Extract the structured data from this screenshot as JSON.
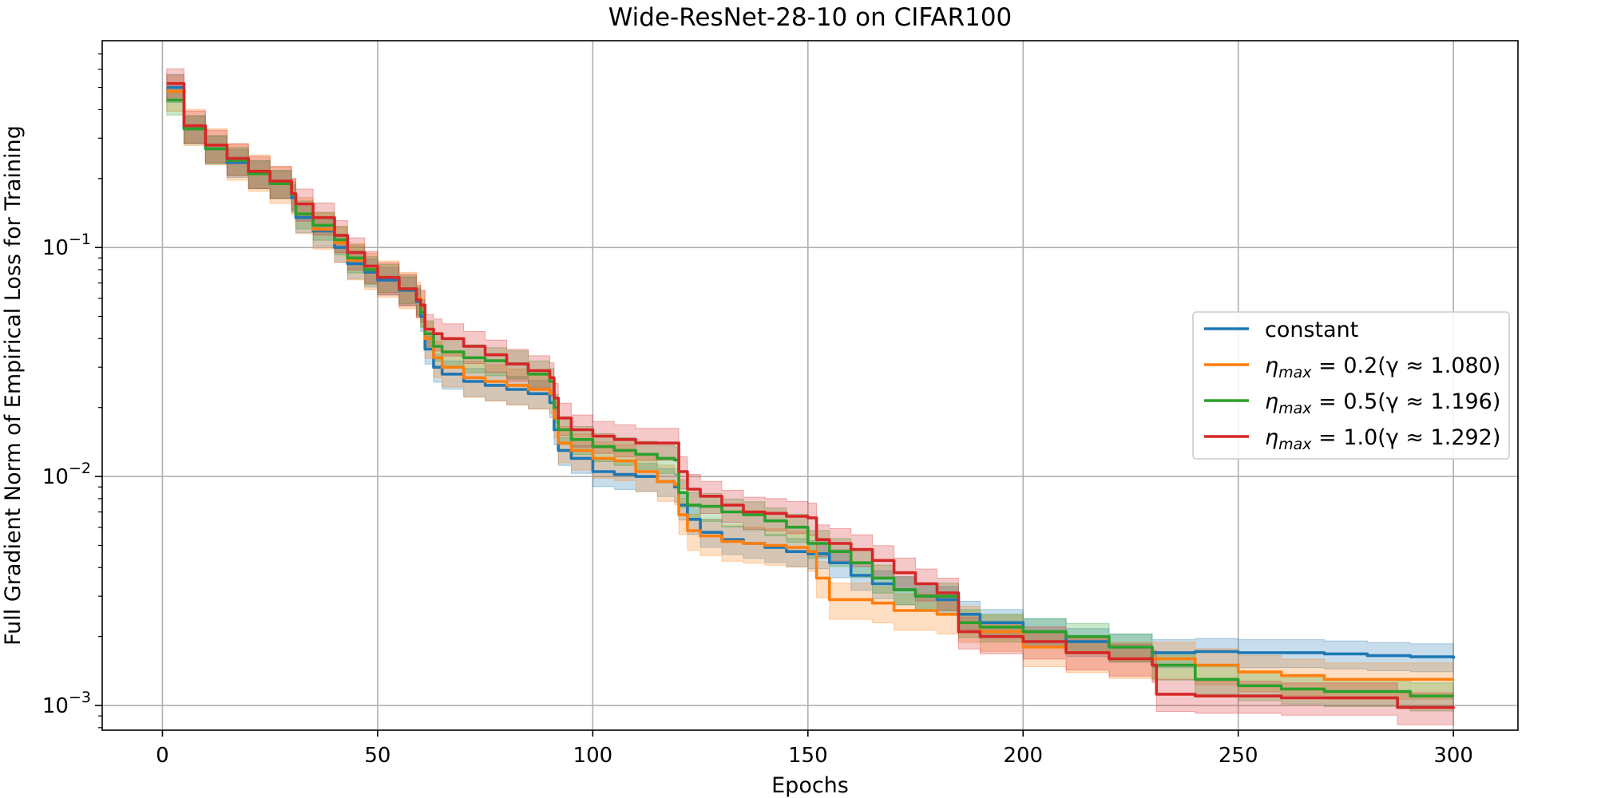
{
  "chart_data": {
    "type": "line",
    "title": "Wide-ResNet-28-10 on CIFAR100",
    "xlabel": "Epochs",
    "ylabel": "Full Gradient Norm of Empirical Loss for Training",
    "xlim": [
      -14,
      315
    ],
    "ylim": [
      0.00078,
      0.8
    ],
    "yscale": "log",
    "grid": true,
    "legend_position": "center-right",
    "x_ticks": [
      0,
      50,
      100,
      150,
      200,
      250,
      300
    ],
    "x_tick_labels": [
      "0",
      "50",
      "100",
      "150",
      "200",
      "250",
      "300"
    ],
    "y_ticks": [
      0.1,
      0.01,
      0.001
    ],
    "y_tick_labels": [
      {
        "base": "10",
        "exp": "−1"
      },
      {
        "base": "10",
        "exp": "−2"
      },
      {
        "base": "10",
        "exp": "−3"
      }
    ],
    "series": [
      {
        "name": "constant",
        "legend": {
          "plain": "constant"
        },
        "color": "#1f77b4",
        "band_pct": 0.14,
        "points": [
          [
            1,
            0.5
          ],
          [
            5,
            0.33
          ],
          [
            10,
            0.27
          ],
          [
            15,
            0.235
          ],
          [
            20,
            0.21
          ],
          [
            25,
            0.19
          ],
          [
            30,
            0.165
          ],
          [
            31,
            0.135
          ],
          [
            35,
            0.118
          ],
          [
            40,
            0.1
          ],
          [
            43,
            0.085
          ],
          [
            47,
            0.078
          ],
          [
            50,
            0.072
          ],
          [
            55,
            0.065
          ],
          [
            59,
            0.058
          ],
          [
            60,
            0.05
          ],
          [
            61,
            0.036
          ],
          [
            63,
            0.03
          ],
          [
            65,
            0.028
          ],
          [
            70,
            0.026
          ],
          [
            75,
            0.025
          ],
          [
            80,
            0.024
          ],
          [
            85,
            0.023
          ],
          [
            90,
            0.021
          ],
          [
            91,
            0.016
          ],
          [
            92,
            0.013
          ],
          [
            95,
            0.012
          ],
          [
            100,
            0.0105
          ],
          [
            105,
            0.0102
          ],
          [
            110,
            0.01
          ],
          [
            115,
            0.0095
          ],
          [
            119,
            0.009
          ],
          [
            120,
            0.0075
          ],
          [
            122,
            0.0065
          ],
          [
            125,
            0.0057
          ],
          [
            130,
            0.0053
          ],
          [
            135,
            0.0051
          ],
          [
            140,
            0.0049
          ],
          [
            145,
            0.0047
          ],
          [
            150,
            0.0046
          ],
          [
            155,
            0.0042
          ],
          [
            160,
            0.0037
          ],
          [
            165,
            0.0034
          ],
          [
            170,
            0.0032
          ],
          [
            175,
            0.003
          ],
          [
            180,
            0.0029
          ],
          [
            185,
            0.0025
          ],
          [
            190,
            0.0023
          ],
          [
            200,
            0.0021
          ],
          [
            210,
            0.0019
          ],
          [
            220,
            0.0018
          ],
          [
            230,
            0.0017
          ],
          [
            240,
            0.00172
          ],
          [
            250,
            0.0017
          ],
          [
            260,
            0.0017
          ],
          [
            270,
            0.00168
          ],
          [
            280,
            0.00165
          ],
          [
            290,
            0.00163
          ],
          [
            300,
            0.0016
          ]
        ]
      },
      {
        "name": "η_max = 0.2(γ ≈ 1.080)",
        "legend": {
          "sym": "η",
          "sub": "max",
          "rest": " = 0.2(γ ≈ 1.080)"
        },
        "color": "#ff7f0e",
        "band_pct": 0.18,
        "points": [
          [
            1,
            0.48
          ],
          [
            5,
            0.34
          ],
          [
            10,
            0.28
          ],
          [
            15,
            0.24
          ],
          [
            20,
            0.215
          ],
          [
            25,
            0.19
          ],
          [
            30,
            0.17
          ],
          [
            31,
            0.14
          ],
          [
            35,
            0.12
          ],
          [
            40,
            0.105
          ],
          [
            43,
            0.088
          ],
          [
            47,
            0.08
          ],
          [
            50,
            0.074
          ],
          [
            55,
            0.066
          ],
          [
            59,
            0.06
          ],
          [
            60,
            0.055
          ],
          [
            61,
            0.04
          ],
          [
            63,
            0.033
          ],
          [
            65,
            0.03
          ],
          [
            70,
            0.027
          ],
          [
            75,
            0.026
          ],
          [
            80,
            0.025
          ],
          [
            85,
            0.024
          ],
          [
            90,
            0.023
          ],
          [
            91,
            0.018
          ],
          [
            92,
            0.014
          ],
          [
            95,
            0.013
          ],
          [
            100,
            0.012
          ],
          [
            105,
            0.0117
          ],
          [
            110,
            0.0105
          ],
          [
            115,
            0.0095
          ],
          [
            119,
            0.0092
          ],
          [
            120,
            0.0068
          ],
          [
            122,
            0.0058
          ],
          [
            125,
            0.0055
          ],
          [
            130,
            0.0052
          ],
          [
            135,
            0.0051
          ],
          [
            140,
            0.005
          ],
          [
            145,
            0.0049
          ],
          [
            150,
            0.0047
          ],
          [
            152,
            0.0036
          ],
          [
            155,
            0.0029
          ],
          [
            160,
            0.0029
          ],
          [
            165,
            0.0028
          ],
          [
            170,
            0.0026
          ],
          [
            175,
            0.0026
          ],
          [
            180,
            0.0025
          ],
          [
            185,
            0.0023
          ],
          [
            190,
            0.0021
          ],
          [
            200,
            0.0018
          ],
          [
            210,
            0.0017
          ],
          [
            220,
            0.0016
          ],
          [
            230,
            0.0016
          ],
          [
            240,
            0.0015
          ],
          [
            250,
            0.0014
          ],
          [
            260,
            0.00135
          ],
          [
            270,
            0.0013
          ],
          [
            280,
            0.0013
          ],
          [
            290,
            0.0013
          ],
          [
            300,
            0.0013
          ]
        ]
      },
      {
        "name": "η_max = 0.5(γ ≈ 1.196)",
        "legend": {
          "sym": "η",
          "sub": "max",
          "rest": " = 0.5(γ ≈ 1.196)"
        },
        "color": "#2ca02c",
        "band_pct": 0.14,
        "points": [
          [
            1,
            0.44
          ],
          [
            5,
            0.33
          ],
          [
            10,
            0.27
          ],
          [
            15,
            0.24
          ],
          [
            20,
            0.21
          ],
          [
            25,
            0.19
          ],
          [
            30,
            0.17
          ],
          [
            31,
            0.14
          ],
          [
            35,
            0.125
          ],
          [
            40,
            0.108
          ],
          [
            43,
            0.09
          ],
          [
            47,
            0.08
          ],
          [
            50,
            0.074
          ],
          [
            55,
            0.066
          ],
          [
            59,
            0.059
          ],
          [
            60,
            0.052
          ],
          [
            61,
            0.042
          ],
          [
            63,
            0.037
          ],
          [
            65,
            0.035
          ],
          [
            70,
            0.033
          ],
          [
            75,
            0.032
          ],
          [
            80,
            0.031
          ],
          [
            85,
            0.028
          ],
          [
            90,
            0.026
          ],
          [
            91,
            0.02
          ],
          [
            92,
            0.016
          ],
          [
            95,
            0.0145
          ],
          [
            100,
            0.0135
          ],
          [
            105,
            0.013
          ],
          [
            110,
            0.0125
          ],
          [
            115,
            0.012
          ],
          [
            119,
            0.0118
          ],
          [
            120,
            0.0085
          ],
          [
            122,
            0.0075
          ],
          [
            125,
            0.0074
          ],
          [
            130,
            0.007
          ],
          [
            135,
            0.0068
          ],
          [
            140,
            0.0064
          ],
          [
            145,
            0.006
          ],
          [
            150,
            0.0051
          ],
          [
            155,
            0.0047
          ],
          [
            160,
            0.0042
          ],
          [
            165,
            0.0036
          ],
          [
            170,
            0.0032
          ],
          [
            175,
            0.003
          ],
          [
            180,
            0.003
          ],
          [
            185,
            0.0023
          ],
          [
            190,
            0.0022
          ],
          [
            200,
            0.0021
          ],
          [
            210,
            0.002
          ],
          [
            220,
            0.0018
          ],
          [
            230,
            0.0015
          ],
          [
            240,
            0.0013
          ],
          [
            250,
            0.00122
          ],
          [
            260,
            0.00118
          ],
          [
            270,
            0.00115
          ],
          [
            280,
            0.00115
          ],
          [
            290,
            0.0011
          ],
          [
            300,
            0.0011
          ]
        ]
      },
      {
        "name": "η_max = 1.0(γ ≈ 1.292)",
        "legend": {
          "sym": "η",
          "sub": "max",
          "rest": " = 1.0(γ ≈ 1.292)"
        },
        "color": "#d62728",
        "band_pct": 0.16,
        "points": [
          [
            1,
            0.52
          ],
          [
            5,
            0.34
          ],
          [
            10,
            0.28
          ],
          [
            15,
            0.245
          ],
          [
            20,
            0.215
          ],
          [
            25,
            0.195
          ],
          [
            30,
            0.172
          ],
          [
            31,
            0.155
          ],
          [
            35,
            0.135
          ],
          [
            40,
            0.113
          ],
          [
            43,
            0.095
          ],
          [
            47,
            0.083
          ],
          [
            50,
            0.074
          ],
          [
            55,
            0.066
          ],
          [
            59,
            0.059
          ],
          [
            60,
            0.056
          ],
          [
            61,
            0.044
          ],
          [
            63,
            0.042
          ],
          [
            65,
            0.04
          ],
          [
            70,
            0.037
          ],
          [
            75,
            0.034
          ],
          [
            80,
            0.031
          ],
          [
            85,
            0.029
          ],
          [
            90,
            0.027
          ],
          [
            91,
            0.022
          ],
          [
            92,
            0.018
          ],
          [
            95,
            0.016
          ],
          [
            100,
            0.015
          ],
          [
            105,
            0.0145
          ],
          [
            110,
            0.014
          ],
          [
            115,
            0.014
          ],
          [
            119,
            0.014
          ],
          [
            120,
            0.0105
          ],
          [
            122,
            0.0088
          ],
          [
            125,
            0.0082
          ],
          [
            130,
            0.0075
          ],
          [
            135,
            0.007
          ],
          [
            140,
            0.0069
          ],
          [
            145,
            0.0067
          ],
          [
            150,
            0.0066
          ],
          [
            152,
            0.0053
          ],
          [
            155,
            0.0051
          ],
          [
            160,
            0.0048
          ],
          [
            165,
            0.0043
          ],
          [
            170,
            0.0038
          ],
          [
            175,
            0.0034
          ],
          [
            180,
            0.0031
          ],
          [
            185,
            0.0021
          ],
          [
            190,
            0.002
          ],
          [
            200,
            0.0019
          ],
          [
            210,
            0.0017
          ],
          [
            220,
            0.0016
          ],
          [
            230,
            0.0015
          ],
          [
            231,
            0.00112
          ],
          [
            240,
            0.0011
          ],
          [
            250,
            0.0011
          ],
          [
            260,
            0.00108
          ],
          [
            270,
            0.00108
          ],
          [
            280,
            0.00108
          ],
          [
            287,
            0.00098
          ],
          [
            290,
            0.00098
          ],
          [
            300,
            0.00097
          ]
        ]
      }
    ]
  }
}
